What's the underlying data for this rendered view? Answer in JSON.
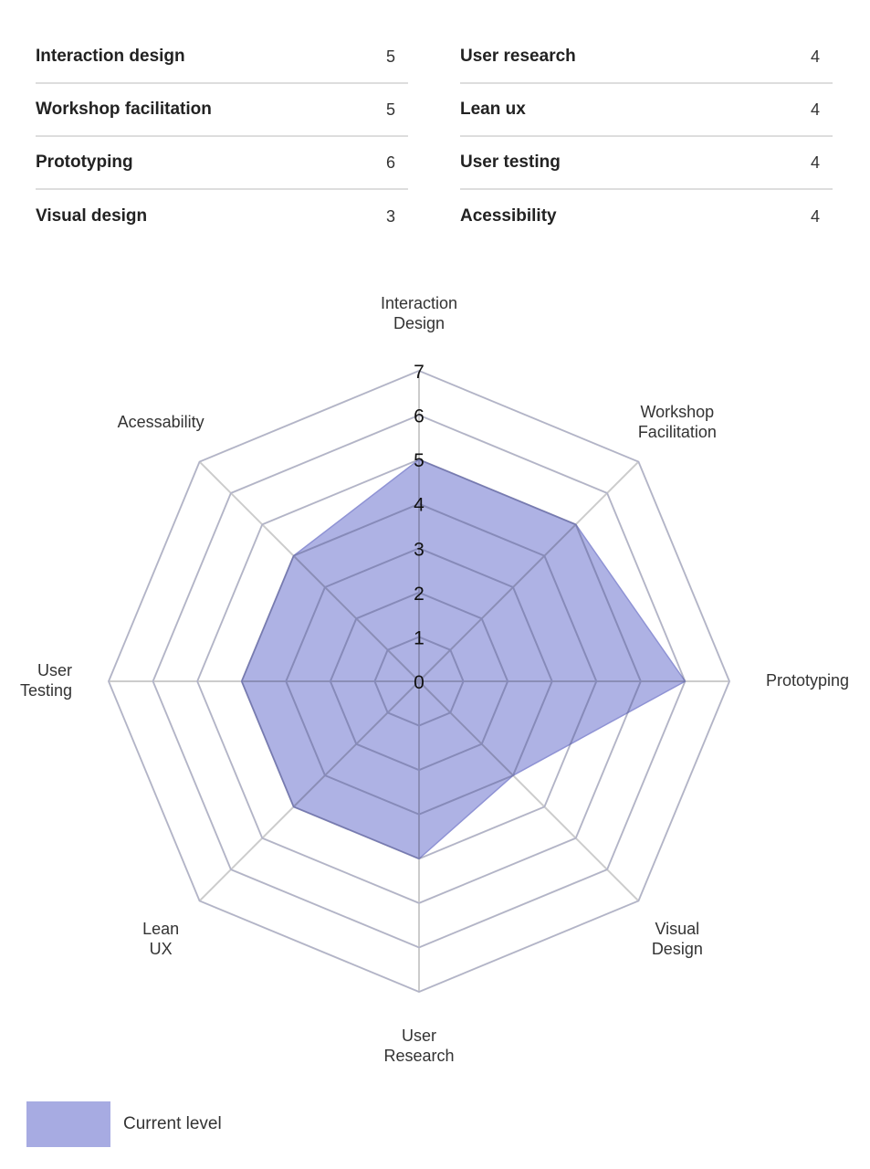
{
  "skills_table": {
    "left": [
      {
        "name": "Interaction design",
        "value": "5"
      },
      {
        "name": "Workshop facilitation",
        "value": "5"
      },
      {
        "name": "Prototyping",
        "value": "6"
      },
      {
        "name": "Visual design",
        "value": "3"
      }
    ],
    "right": [
      {
        "name": "User research",
        "value": "4"
      },
      {
        "name": "Lean ux",
        "value": "4"
      },
      {
        "name": "User testing",
        "value": "4"
      },
      {
        "name": "Acessibility",
        "value": "4"
      }
    ]
  },
  "chart_data": {
    "type": "radar",
    "title": "",
    "axes": [
      [
        "Interaction",
        "Design"
      ],
      [
        "Workshop",
        "Facilitation"
      ],
      [
        "Prototyping"
      ],
      [
        "Visual",
        "Design"
      ],
      [
        "User",
        "Research"
      ],
      [
        "Lean",
        "UX"
      ],
      [
        "User",
        "Testing"
      ],
      [
        "Acessability"
      ]
    ],
    "scale": {
      "min": 0,
      "max": 7,
      "ticks": [
        0,
        1,
        2,
        3,
        4,
        5,
        6,
        7
      ]
    },
    "series": [
      {
        "name": "Current level",
        "values": [
          5,
          5,
          6,
          3,
          4,
          4,
          4,
          4
        ],
        "color": "#a7abe2"
      }
    ],
    "grid": true,
    "legend_position": "bottom-left"
  },
  "colors": {
    "fill": "#a7abe2",
    "fill_stroke": "#8f93d4",
    "grid": "#cccccc"
  }
}
